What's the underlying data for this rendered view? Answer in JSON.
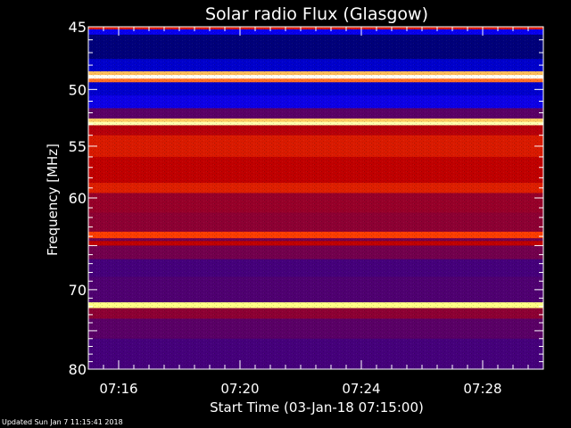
{
  "chart_data": {
    "type": "heatmap",
    "title": "Solar radio Flux (Glasgow)",
    "xlabel": "Start Time (03-Jan-18 07:15:00)",
    "ylabel": "Frequency [MHz]",
    "x_range_minutes_after_start": [
      0,
      15
    ],
    "y_scale": "log",
    "ylim": [
      45,
      80
    ],
    "x_ticks": [
      {
        "minute": 1,
        "label": "07:16"
      },
      {
        "minute": 5,
        "label": "07:20"
      },
      {
        "minute": 9,
        "label": "07:24"
      },
      {
        "minute": 13,
        "label": "07:28"
      }
    ],
    "y_ticks": [
      {
        "value": 45,
        "label": "45"
      },
      {
        "value": 50,
        "label": "50"
      },
      {
        "value": 55,
        "label": "55"
      },
      {
        "value": 60,
        "label": "60"
      },
      {
        "value": 70,
        "label": "70"
      },
      {
        "value": 80,
        "label": "80"
      }
    ],
    "colormap": [
      "#000000",
      "#0000ff",
      "#400080",
      "#800040",
      "#c00000",
      "#ff4000",
      "#ff9040",
      "#ffff80",
      "#ffffff"
    ],
    "frequency_bands": [
      {
        "from": 45.0,
        "to": 45.2,
        "intensity": 0.55
      },
      {
        "from": 45.2,
        "to": 45.6,
        "intensity": 0.14
      },
      {
        "from": 45.6,
        "to": 47.5,
        "intensity": 0.06
      },
      {
        "from": 47.5,
        "to": 48.5,
        "intensity": 0.1
      },
      {
        "from": 48.5,
        "to": 48.8,
        "intensity": 0.8
      },
      {
        "from": 48.8,
        "to": 49.1,
        "intensity": 0.99
      },
      {
        "from": 49.1,
        "to": 49.4,
        "intensity": 0.7
      },
      {
        "from": 49.4,
        "to": 50.5,
        "intensity": 0.1
      },
      {
        "from": 50.5,
        "to": 51.6,
        "intensity": 0.15
      },
      {
        "from": 51.6,
        "to": 52.5,
        "intensity": 0.3
      },
      {
        "from": 52.5,
        "to": 52.8,
        "intensity": 0.82
      },
      {
        "from": 52.8,
        "to": 53.1,
        "intensity": 0.92
      },
      {
        "from": 53.1,
        "to": 54.0,
        "intensity": 0.48
      },
      {
        "from": 54.0,
        "to": 56.0,
        "intensity": 0.55
      },
      {
        "from": 56.0,
        "to": 58.5,
        "intensity": 0.5
      },
      {
        "from": 58.5,
        "to": 59.5,
        "intensity": 0.56
      },
      {
        "from": 59.5,
        "to": 61.5,
        "intensity": 0.42
      },
      {
        "from": 61.5,
        "to": 63.5,
        "intensity": 0.4
      },
      {
        "from": 63.5,
        "to": 64.2,
        "intensity": 0.62
      },
      {
        "from": 64.2,
        "to": 64.5,
        "intensity": 0.35
      },
      {
        "from": 64.5,
        "to": 65.0,
        "intensity": 0.5
      },
      {
        "from": 65.0,
        "to": 66.5,
        "intensity": 0.35
      },
      {
        "from": 66.5,
        "to": 68.5,
        "intensity": 0.26
      },
      {
        "from": 68.5,
        "to": 71.5,
        "intensity": 0.28
      },
      {
        "from": 71.5,
        "to": 72.2,
        "intensity": 0.88
      },
      {
        "from": 72.2,
        "to": 73.5,
        "intensity": 0.4
      },
      {
        "from": 73.5,
        "to": 76.0,
        "intensity": 0.3
      },
      {
        "from": 76.0,
        "to": 80.0,
        "intensity": 0.26
      }
    ]
  },
  "footer": {
    "updated": "Updated Sun Jan  7 11:15:41 2018"
  }
}
